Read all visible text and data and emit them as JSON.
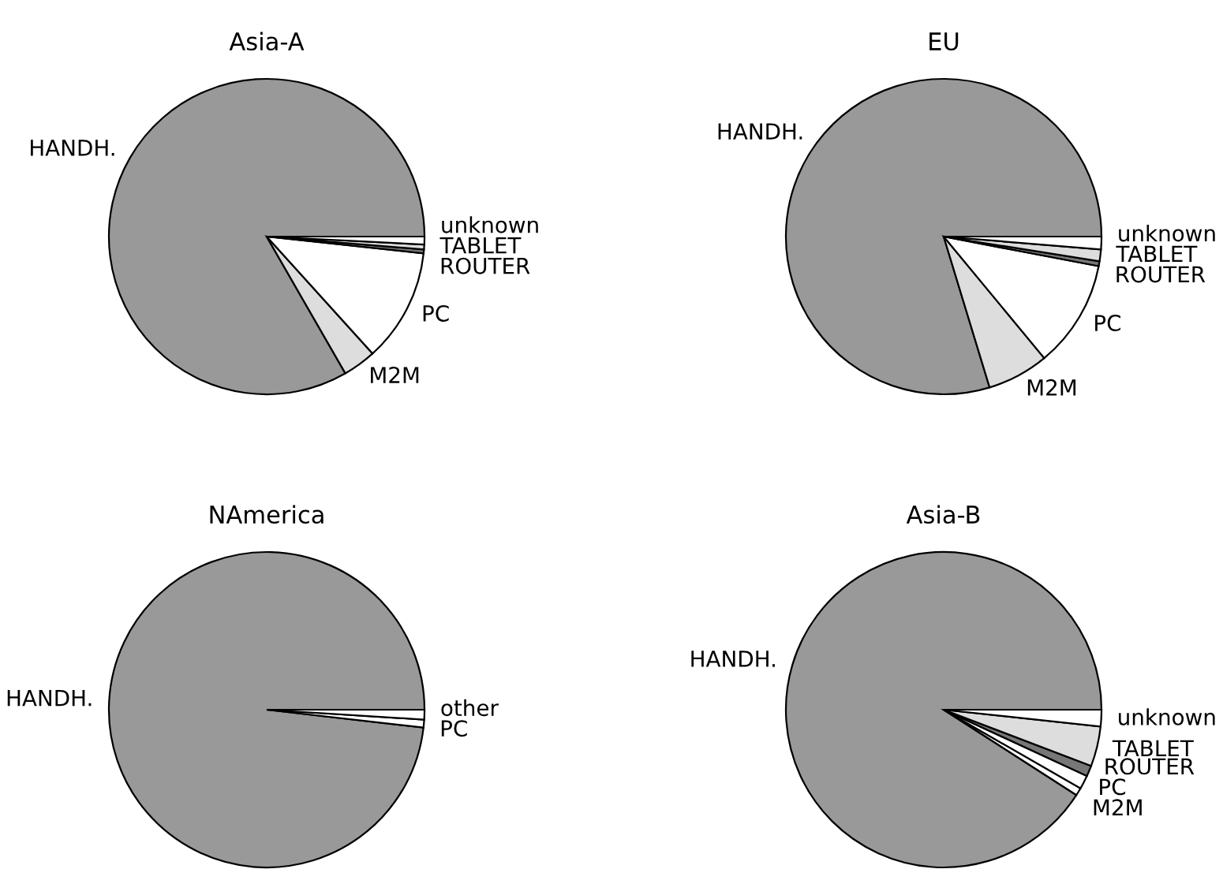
{
  "chart_data": [
    {
      "type": "pie",
      "title": "Asia-A",
      "categories": [
        "HANDH.",
        "M2M",
        "PC",
        "ROUTER",
        "TABLET",
        "unknown"
      ],
      "values": [
        83.3,
        3.4,
        11.6,
        0.4,
        0.5,
        0.8
      ],
      "colors": [
        "#999999",
        "#dddddd",
        "#ffffff",
        "#777777",
        "#dddddd",
        "#ffffff"
      ]
    },
    {
      "type": "pie",
      "title": "EU",
      "categories": [
        "HANDH.",
        "M2M",
        "PC",
        "ROUTER",
        "TABLET",
        "unknown"
      ],
      "values": [
        79.7,
        6.3,
        11.0,
        0.5,
        1.2,
        1.3
      ],
      "colors": [
        "#999999",
        "#dddddd",
        "#ffffff",
        "#777777",
        "#dddddd",
        "#ffffff"
      ]
    },
    {
      "type": "pie",
      "title": "NAmerica",
      "categories": [
        "HANDH.",
        "PC",
        "other"
      ],
      "values": [
        98.2,
        0.8,
        1.0
      ],
      "colors": [
        "#999999",
        "#ffffff",
        "#ffffff"
      ]
    },
    {
      "type": "pie",
      "title": "Asia-B",
      "categories": [
        "HANDH.",
        "M2M",
        "PC",
        "ROUTER",
        "TABLET",
        "unknown"
      ],
      "values": [
        90.9,
        0.8,
        1.4,
        1.1,
        4.1,
        1.7
      ],
      "colors": [
        "#999999",
        "#ffffff",
        "#ffffff",
        "#777777",
        "#dddddd",
        "#ffffff"
      ]
    }
  ]
}
